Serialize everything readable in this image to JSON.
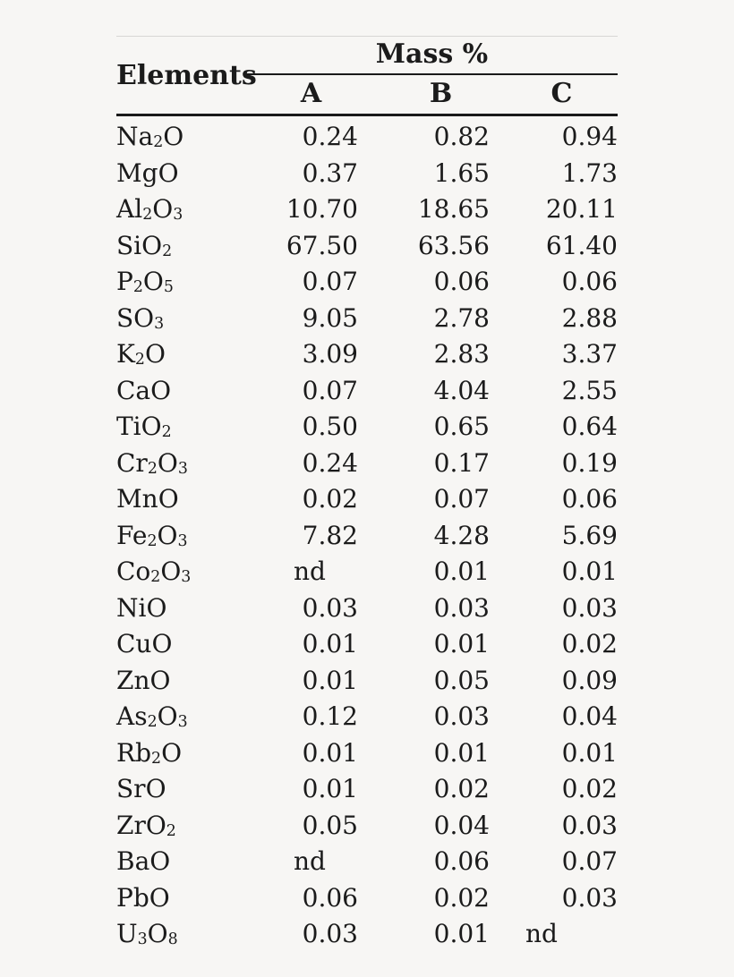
{
  "colors": {
    "background": "#f7f6f4",
    "text": "#1b1b1b",
    "rule_dark": "#1a1a1a",
    "rule_light": "#d8d7d4"
  },
  "table": {
    "header": {
      "elements_label": "Elements",
      "group_label": "Mass %",
      "sample_columns": [
        "A",
        "B",
        "C"
      ]
    },
    "not_detected_label": "nd",
    "rows": [
      {
        "formula": "Na_2O",
        "values": [
          "0.24",
          "0.82",
          "0.94"
        ]
      },
      {
        "formula": "MgO",
        "values": [
          "0.37",
          "1.65",
          "1.73"
        ]
      },
      {
        "formula": "Al_2O_3",
        "values": [
          "10.70",
          "18.65",
          "20.11"
        ]
      },
      {
        "formula": "SiO_2",
        "values": [
          "67.50",
          "63.56",
          "61.40"
        ]
      },
      {
        "formula": "P_2O_5",
        "values": [
          "0.07",
          "0.06",
          "0.06"
        ]
      },
      {
        "formula": "SO_3",
        "values": [
          "9.05",
          "2.78",
          "2.88"
        ]
      },
      {
        "formula": "K_2O",
        "values": [
          "3.09",
          "2.83",
          "3.37"
        ]
      },
      {
        "formula": "CaO",
        "values": [
          "0.07",
          "4.04",
          "2.55"
        ]
      },
      {
        "formula": "TiO_2",
        "values": [
          "0.50",
          "0.65",
          "0.64"
        ]
      },
      {
        "formula": "Cr_2O_3",
        "values": [
          "0.24",
          "0.17",
          "0.19"
        ]
      },
      {
        "formula": "MnO",
        "values": [
          "0.02",
          "0.07",
          "0.06"
        ]
      },
      {
        "formula": "Fe_2O_3",
        "values": [
          "7.82",
          "4.28",
          "5.69"
        ]
      },
      {
        "formula": "Co_2O_3",
        "values": [
          "nd",
          "0.01",
          "0.01"
        ]
      },
      {
        "formula": "NiO",
        "values": [
          "0.03",
          "0.03",
          "0.03"
        ]
      },
      {
        "formula": "CuO",
        "values": [
          "0.01",
          "0.01",
          "0.02"
        ]
      },
      {
        "formula": "ZnO",
        "values": [
          "0.01",
          "0.05",
          "0.09"
        ]
      },
      {
        "formula": "As_2O_3",
        "values": [
          "0.12",
          "0.03",
          "0.04"
        ]
      },
      {
        "formula": "Rb_2O",
        "values": [
          "0.01",
          "0.01",
          "0.01"
        ]
      },
      {
        "formula": "SrO",
        "values": [
          "0.01",
          "0.02",
          "0.02"
        ]
      },
      {
        "formula": "ZrO_2",
        "values": [
          "0.05",
          "0.04",
          "0.03"
        ]
      },
      {
        "formula": "BaO",
        "values": [
          "nd",
          "0.06",
          "0.07"
        ]
      },
      {
        "formula": "PbO",
        "values": [
          "0.06",
          "0.02",
          "0.03"
        ]
      },
      {
        "formula": "U_3O_8",
        "values": [
          "0.03",
          "0.01",
          "nd"
        ]
      }
    ]
  }
}
